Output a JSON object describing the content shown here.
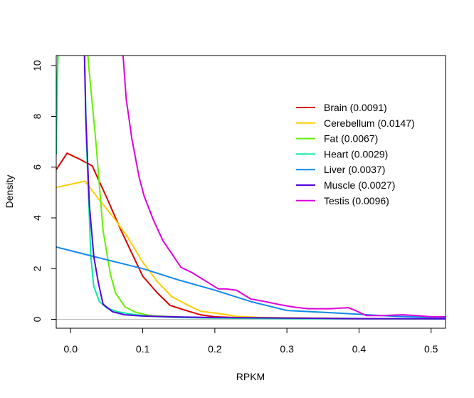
{
  "chart_data": {
    "type": "line",
    "xlabel": "RPKM",
    "ylabel": "Density",
    "xlim": [
      -0.02,
      0.52
    ],
    "ylim": [
      -0.35,
      10.4
    ],
    "x_ticks": [
      0.0,
      0.1,
      0.2,
      0.3,
      0.4,
      0.5
    ],
    "x_tick_labels": [
      "0.0",
      "0.1",
      "0.2",
      "0.3",
      "0.4",
      "0.5"
    ],
    "y_ticks": [
      0,
      2,
      4,
      6,
      8,
      10
    ],
    "y_tick_labels": [
      "0",
      "2",
      "4",
      "6",
      "8",
      "10"
    ],
    "legend_position": "top-right",
    "baseline": 0,
    "series": [
      {
        "name": "Brain (0.0091)",
        "color": "#dd0000",
        "points": [
          [
            -0.02,
            5.9
          ],
          [
            -0.005,
            6.55
          ],
          [
            0.01,
            6.35
          ],
          [
            0.03,
            6.05
          ],
          [
            0.05,
            4.8
          ],
          [
            0.07,
            3.5
          ],
          [
            0.085,
            2.6
          ],
          [
            0.1,
            1.7
          ],
          [
            0.12,
            1.05
          ],
          [
            0.138,
            0.55
          ],
          [
            0.16,
            0.35
          ],
          [
            0.18,
            0.18
          ],
          [
            0.2,
            0.1
          ],
          [
            0.23,
            0.07
          ],
          [
            0.26,
            0.05
          ],
          [
            0.3,
            0.04
          ],
          [
            0.35,
            0.03
          ],
          [
            0.4,
            0.02
          ],
          [
            0.45,
            0.02
          ],
          [
            0.52,
            0.02
          ]
        ]
      },
      {
        "name": "Cerebellum (0.0147)",
        "color": "#ffcc00",
        "points": [
          [
            -0.02,
            5.2
          ],
          [
            0.02,
            5.45
          ],
          [
            0.04,
            4.7
          ],
          [
            0.06,
            4.0
          ],
          [
            0.08,
            3.2
          ],
          [
            0.1,
            2.25
          ],
          [
            0.12,
            1.5
          ],
          [
            0.14,
            0.9
          ],
          [
            0.16,
            0.6
          ],
          [
            0.18,
            0.32
          ],
          [
            0.2,
            0.25
          ],
          [
            0.23,
            0.12
          ],
          [
            0.26,
            0.08
          ],
          [
            0.3,
            0.06
          ],
          [
            0.35,
            0.05
          ],
          [
            0.4,
            0.03
          ],
          [
            0.45,
            0.03
          ],
          [
            0.52,
            0.03
          ]
        ]
      },
      {
        "name": "Fat (0.0067)",
        "color": "#66ee00",
        "points": [
          [
            -0.02,
            8.6
          ],
          [
            -0.015,
            12.0
          ],
          [
            0.02,
            12.0
          ],
          [
            0.025,
            10.0
          ],
          [
            0.035,
            7.0
          ],
          [
            0.045,
            3.5
          ],
          [
            0.055,
            1.8
          ],
          [
            0.062,
            1.05
          ],
          [
            0.075,
            0.5
          ],
          [
            0.09,
            0.28
          ],
          [
            0.11,
            0.15
          ],
          [
            0.15,
            0.09
          ],
          [
            0.2,
            0.06
          ],
          [
            0.3,
            0.04
          ],
          [
            0.4,
            0.03
          ],
          [
            0.52,
            0.02
          ]
        ]
      },
      {
        "name": "Heart (0.0029)",
        "color": "#00ee99",
        "points": [
          [
            -0.02,
            6.5
          ],
          [
            -0.017,
            12.0
          ],
          [
            0.018,
            12.0
          ],
          [
            0.022,
            7.0
          ],
          [
            0.028,
            2.5
          ],
          [
            0.032,
            1.3
          ],
          [
            0.04,
            0.7
          ],
          [
            0.05,
            0.45
          ],
          [
            0.065,
            0.3
          ],
          [
            0.085,
            0.2
          ],
          [
            0.11,
            0.12
          ],
          [
            0.15,
            0.07
          ],
          [
            0.2,
            0.05
          ],
          [
            0.3,
            0.03
          ],
          [
            0.4,
            0.02
          ],
          [
            0.52,
            0.02
          ]
        ]
      },
      {
        "name": "Liver (0.0037)",
        "color": "#1188ee",
        "points": [
          [
            -0.02,
            2.85
          ],
          [
            0.05,
            2.35
          ],
          [
            0.1,
            2.0
          ],
          [
            0.15,
            1.55
          ],
          [
            0.2,
            1.15
          ],
          [
            0.25,
            0.7
          ],
          [
            0.3,
            0.35
          ],
          [
            0.35,
            0.28
          ],
          [
            0.4,
            0.2
          ],
          [
            0.45,
            0.12
          ],
          [
            0.5,
            0.08
          ],
          [
            0.52,
            0.07
          ]
        ]
      },
      {
        "name": "Muscle (0.0027)",
        "color": "#5500dd",
        "points": [
          [
            -0.02,
            10.4
          ],
          [
            -0.016,
            12.0
          ],
          [
            0.018,
            12.0
          ],
          [
            0.021,
            8.0
          ],
          [
            0.026,
            4.5
          ],
          [
            0.032,
            2.5
          ],
          [
            0.038,
            1.5
          ],
          [
            0.045,
            0.6
          ],
          [
            0.058,
            0.3
          ],
          [
            0.075,
            0.18
          ],
          [
            0.1,
            0.13
          ],
          [
            0.14,
            0.1
          ],
          [
            0.2,
            0.07
          ],
          [
            0.3,
            0.05
          ],
          [
            0.4,
            0.03
          ],
          [
            0.52,
            0.02
          ]
        ]
      },
      {
        "name": "Testis (0.0096)",
        "color": "#dd00dd",
        "points": [
          [
            0.068,
            12.0
          ],
          [
            0.073,
            10.3
          ],
          [
            0.077,
            8.7
          ],
          [
            0.085,
            7.1
          ],
          [
            0.095,
            5.6
          ],
          [
            0.102,
            4.85
          ],
          [
            0.115,
            3.9
          ],
          [
            0.128,
            3.1
          ],
          [
            0.14,
            2.6
          ],
          [
            0.153,
            2.05
          ],
          [
            0.168,
            1.85
          ],
          [
            0.185,
            1.55
          ],
          [
            0.205,
            1.2
          ],
          [
            0.215,
            1.2
          ],
          [
            0.23,
            1.15
          ],
          [
            0.25,
            0.8
          ],
          [
            0.27,
            0.7
          ],
          [
            0.29,
            0.58
          ],
          [
            0.31,
            0.48
          ],
          [
            0.33,
            0.42
          ],
          [
            0.36,
            0.42
          ],
          [
            0.385,
            0.46
          ],
          [
            0.395,
            0.35
          ],
          [
            0.41,
            0.15
          ],
          [
            0.43,
            0.15
          ],
          [
            0.46,
            0.18
          ],
          [
            0.48,
            0.15
          ],
          [
            0.5,
            0.1
          ],
          [
            0.52,
            0.1
          ]
        ]
      }
    ]
  }
}
